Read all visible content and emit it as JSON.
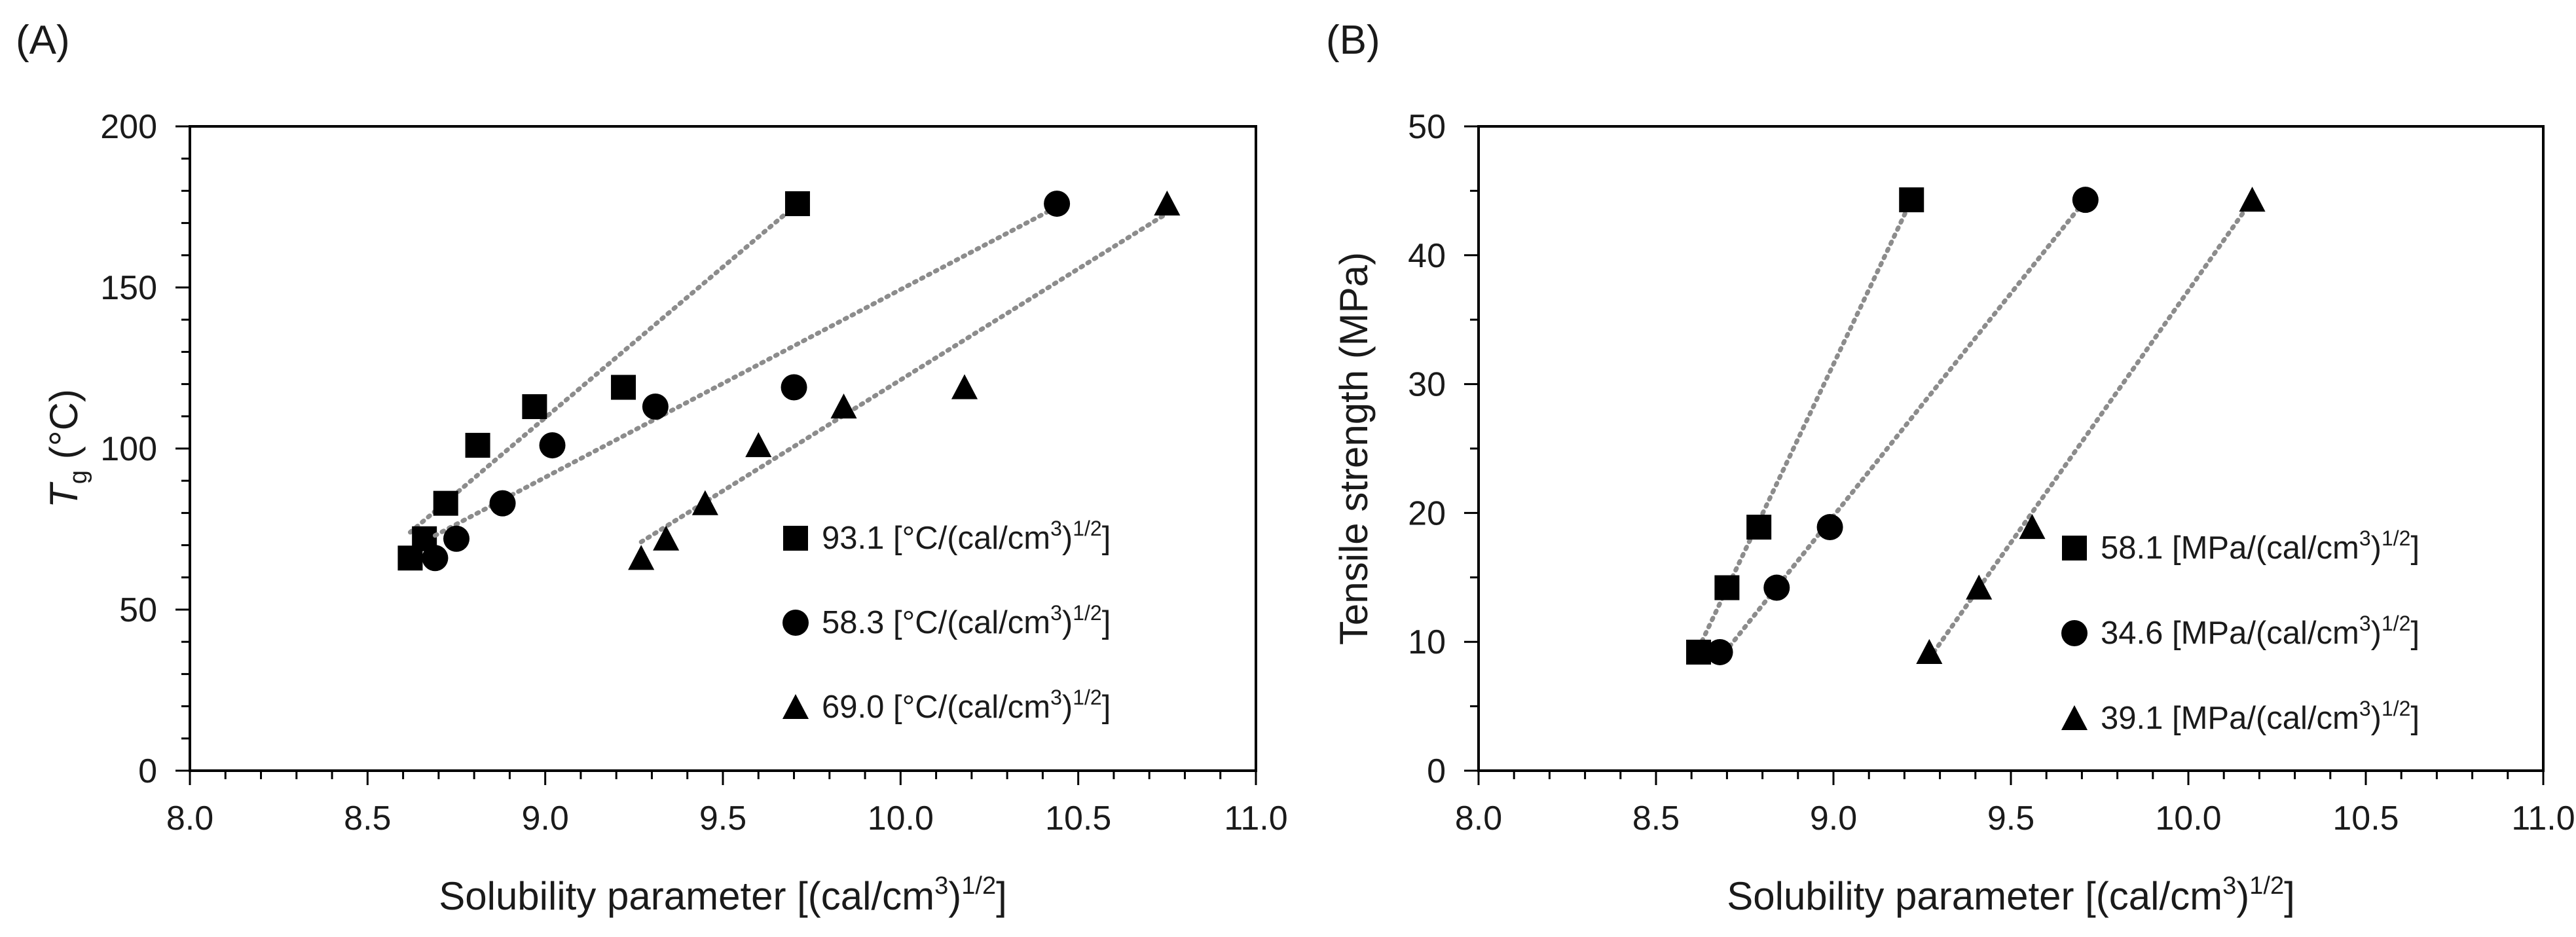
{
  "chart_data": [
    {
      "type": "scatter",
      "panel_label": "(A)",
      "xlabel": "Solubility parameter [(cal/cm3)1/2]",
      "xlabel_parts": {
        "pre": "Solubility parameter [(cal/cm",
        "sup1": "3",
        "mid": ")",
        "sup2": "1/2",
        "post": "]"
      },
      "ylabel": "Tg (°C)",
      "ylabel_parts": {
        "main": "T",
        "sub": "g",
        "post": " (°C)"
      },
      "xlim": [
        8.0,
        11.0
      ],
      "ylim": [
        0,
        200
      ],
      "xticks": [
        8.0,
        8.5,
        9.0,
        9.5,
        10.0,
        10.5,
        11.0
      ],
      "xtick_labels": [
        "8.0",
        "8.5",
        "9.0",
        "9.5",
        "10.0",
        "10.5",
        "11.0"
      ],
      "yticks": [
        0,
        50,
        100,
        150,
        200
      ],
      "ytick_labels": [
        "0",
        "50",
        "100",
        "150",
        "200"
      ],
      "grid": false,
      "legend_position": "bottom-right",
      "series": [
        {
          "name": "93.1 [°C/(cal/cm3)1/2]",
          "legend_parts": {
            "pre": "93.1 [°C/(cal/cm",
            "sup1": "3",
            "mid": ")",
            "sup2": "1/2",
            "post": "]"
          },
          "marker": "square",
          "x": [
            8.62,
            8.66,
            8.72,
            8.81,
            8.97,
            9.22,
            9.71
          ],
          "y": [
            66,
            72,
            83,
            101,
            113,
            119,
            176
          ],
          "trendline": {
            "x": [
              8.62,
              9.71
            ],
            "y": [
              74,
              176
            ]
          }
        },
        {
          "name": "58.3 [°C/(cal/cm3)1/2]",
          "legend_parts": {
            "pre": "58.3 [°C/(cal/cm",
            "sup1": "3",
            "mid": ")",
            "sup2": "1/2",
            "post": "]"
          },
          "marker": "circle",
          "x": [
            8.69,
            8.75,
            8.88,
            9.02,
            9.31,
            9.7,
            10.44
          ],
          "y": [
            66,
            72,
            83,
            101,
            113,
            119,
            176
          ],
          "trendline": {
            "x": [
              8.69,
              10.44
            ],
            "y": [
              73,
              175
            ]
          }
        },
        {
          "name": "69.0 [°C/(cal/cm3)1/2]",
          "legend_parts": {
            "pre": "69.0 [°C/(cal/cm",
            "sup1": "3",
            "mid": ")",
            "sup2": "1/2",
            "post": "]"
          },
          "marker": "triangle",
          "x": [
            9.27,
            9.34,
            9.45,
            9.6,
            9.84,
            10.18,
            10.75
          ],
          "y": [
            66,
            72,
            83,
            101,
            113,
            119,
            176
          ],
          "trendline": {
            "x": [
              9.27,
              10.75
            ],
            "y": [
              71,
              173
            ]
          }
        }
      ]
    },
    {
      "type": "scatter",
      "panel_label": "(B)",
      "xlabel": "Solubility parameter [(cal/cm3)1/2]",
      "xlabel_parts": {
        "pre": "Solubility parameter [(cal/cm",
        "sup1": "3",
        "mid": ")",
        "sup2": "1/2",
        "post": "]"
      },
      "ylabel": "Tensile strength (MPa)",
      "ylabel_parts": {
        "main": "Tensile strength (MPa)",
        "sub": "",
        "post": ""
      },
      "xlim": [
        8.0,
        11.0
      ],
      "ylim": [
        0,
        50
      ],
      "xticks": [
        8.0,
        8.5,
        9.0,
        9.5,
        10.0,
        10.5,
        11.0
      ],
      "xtick_labels": [
        "8.0",
        "8.5",
        "9.0",
        "9.5",
        "10.0",
        "10.5",
        "11.0"
      ],
      "yticks": [
        0,
        10,
        20,
        30,
        40,
        50
      ],
      "ytick_labels": [
        "0",
        "10",
        "20",
        "30",
        "40",
        "50"
      ],
      "grid": false,
      "legend_position": "bottom-right",
      "series": [
        {
          "name": "58.1 [MPa/(cal/cm3)1/2]",
          "legend_parts": {
            "pre": "58.1 [MPa/(cal/cm",
            "sup1": "3",
            "mid": ")",
            "sup2": "1/2",
            "post": "]"
          },
          "marker": "square",
          "x": [
            8.62,
            8.7,
            8.79,
            9.22
          ],
          "y": [
            9.2,
            14.2,
            18.9,
            44.3
          ],
          "trendline": {
            "x": [
              8.62,
              9.22
            ],
            "y": [
              9.5,
              44.3
            ]
          }
        },
        {
          "name": "34.6 [MPa/(cal/cm3)1/2]",
          "legend_parts": {
            "pre": "34.6 [MPa/(cal/cm",
            "sup1": "3",
            "mid": ")",
            "sup2": "1/2",
            "post": "]"
          },
          "marker": "circle",
          "x": [
            8.68,
            8.84,
            8.99,
            9.71
          ],
          "y": [
            9.2,
            14.2,
            18.9,
            44.3
          ],
          "trendline": {
            "x": [
              8.68,
              9.71
            ],
            "y": [
              8.7,
              44.3
            ]
          }
        },
        {
          "name": "39.1 [MPa/(cal/cm3)1/2]",
          "legend_parts": {
            "pre": "39.1 [MPa/(cal/cm",
            "sup1": "3",
            "mid": ")",
            "sup2": "1/2",
            "post": "]"
          },
          "marker": "triangle",
          "x": [
            9.27,
            9.41,
            9.56,
            10.18
          ],
          "y": [
            9.2,
            14.2,
            18.9,
            44.3
          ],
          "trendline": {
            "x": [
              9.27,
              10.18
            ],
            "y": [
              8.7,
              44.3
            ]
          }
        }
      ]
    }
  ]
}
